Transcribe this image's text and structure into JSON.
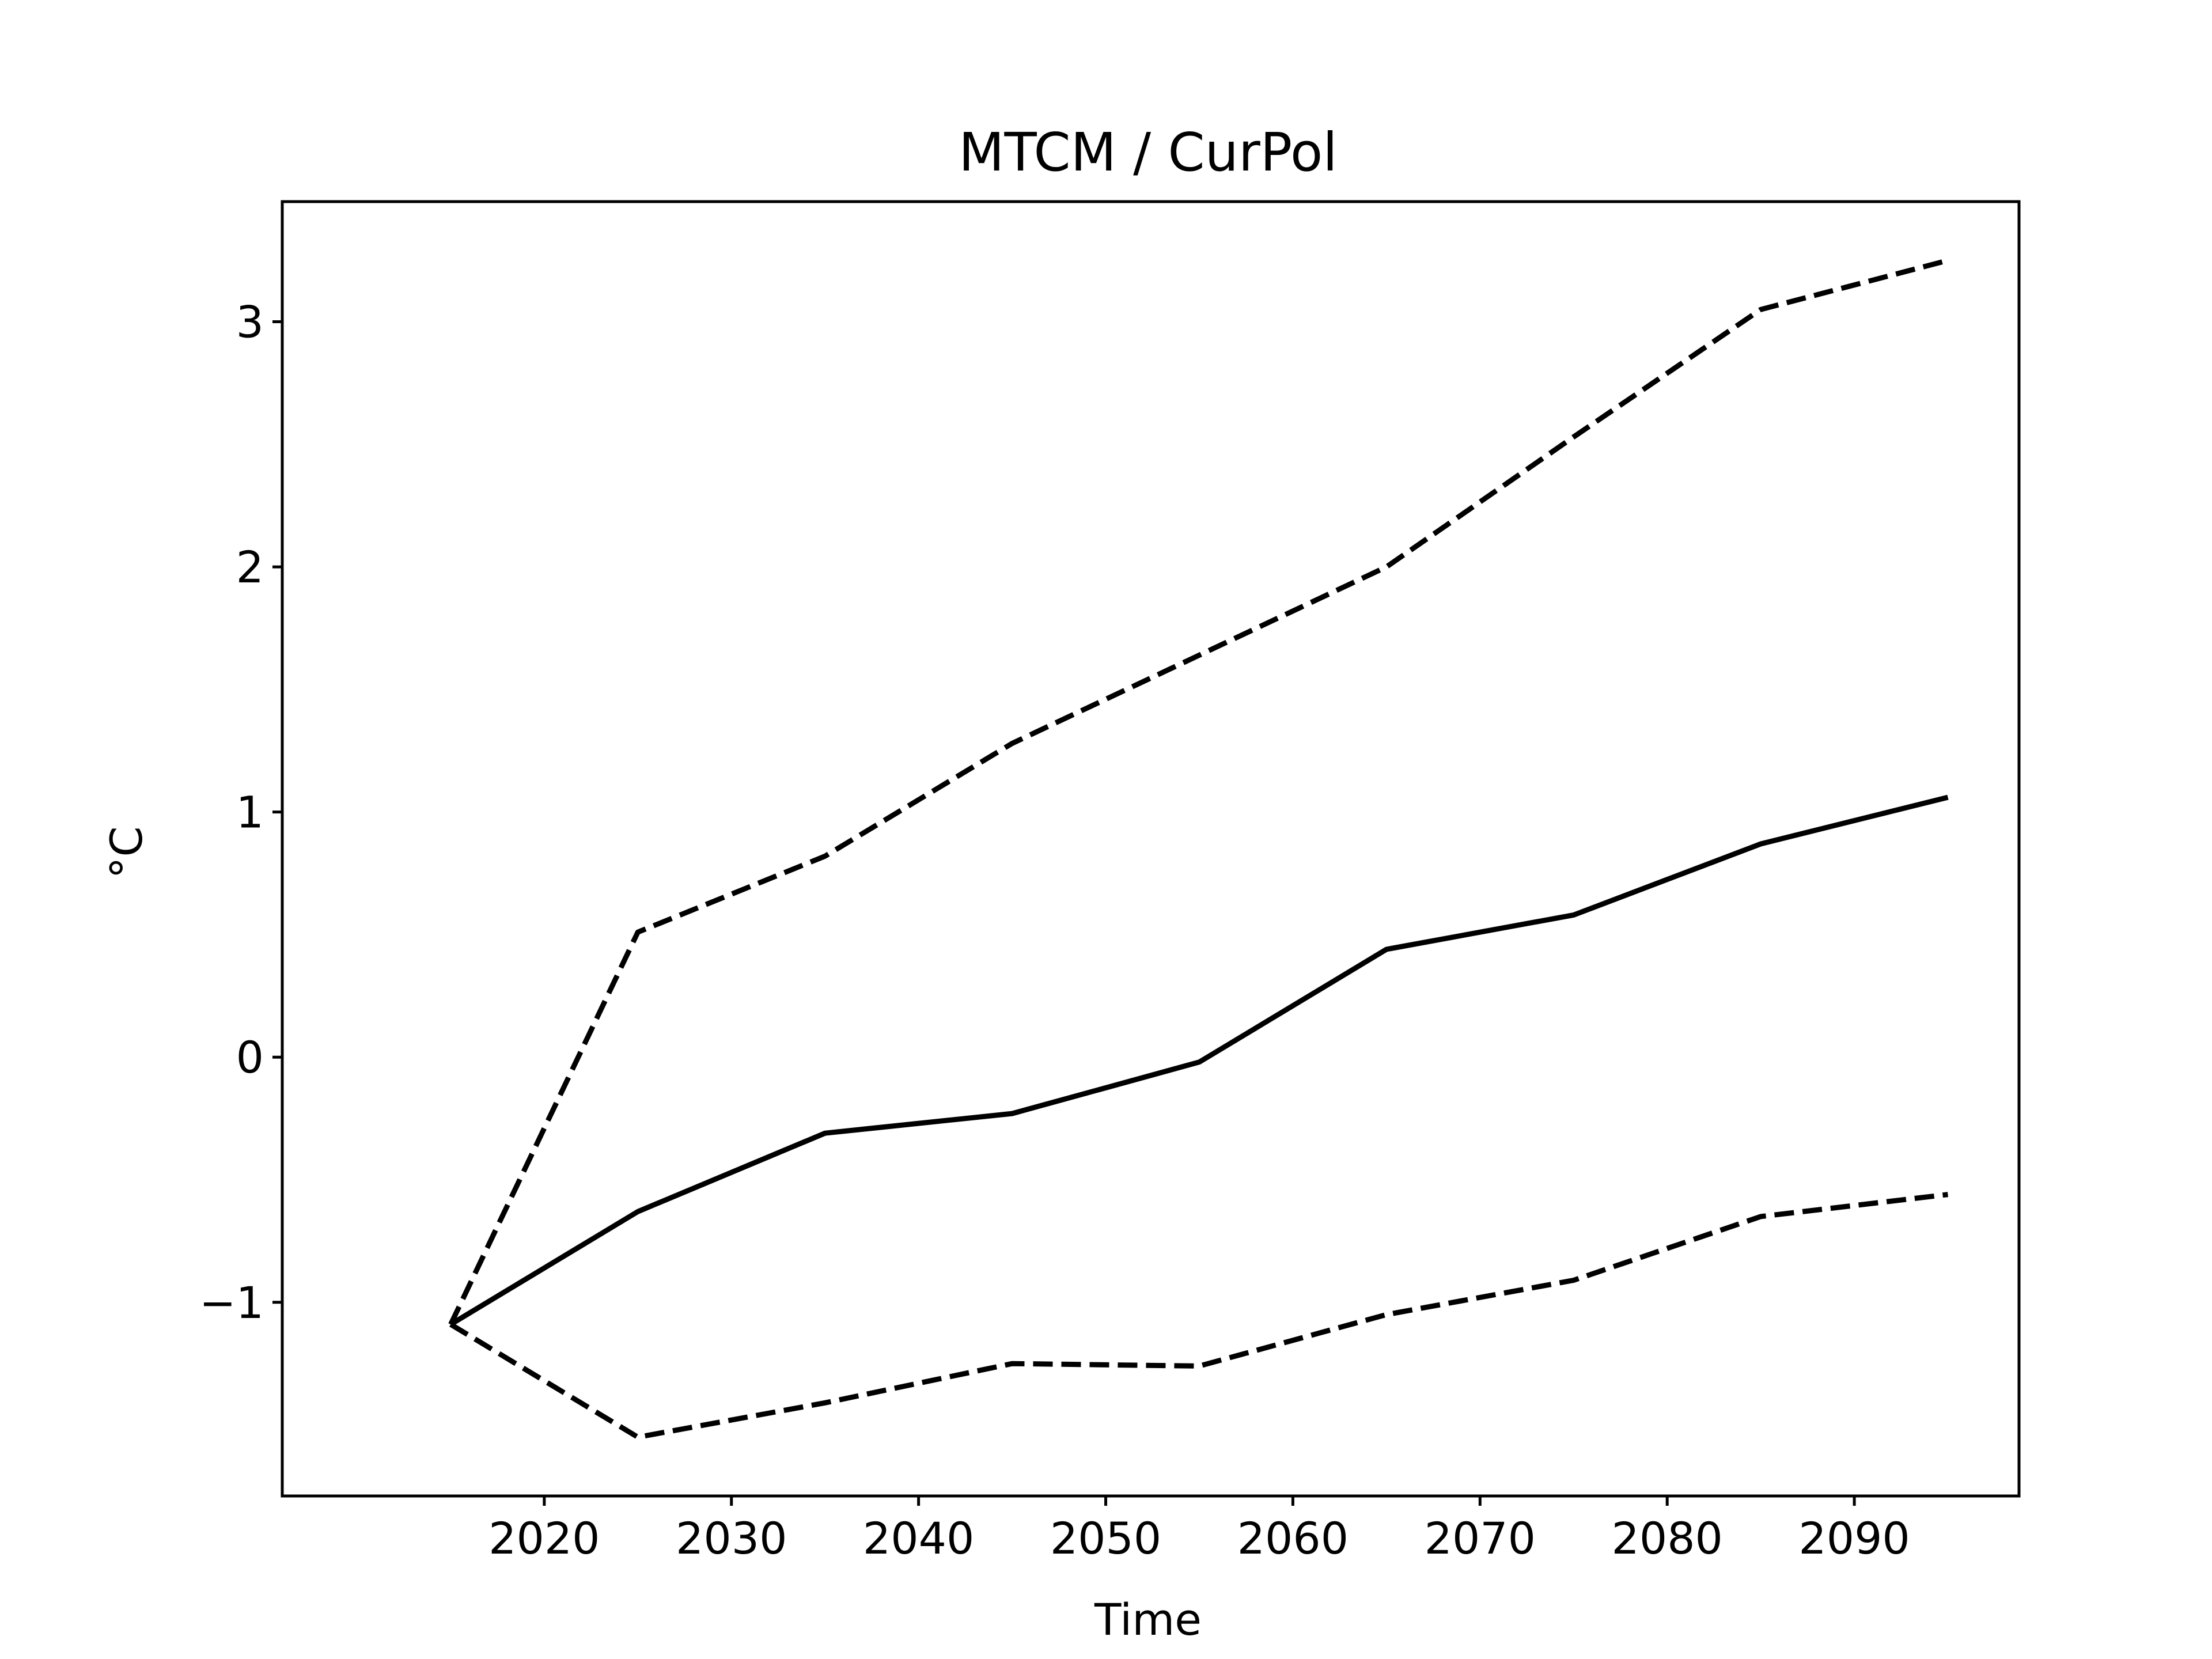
{
  "chart_data": {
    "type": "line",
    "title": "MTCM / CurPol",
    "xlabel": "Time",
    "ylabel": "°C",
    "x": [
      2015,
      2025,
      2035,
      2045,
      2055,
      2065,
      2075,
      2085,
      2095
    ],
    "xlim": [
      2006,
      2098.8
    ],
    "ylim": [
      -1.79,
      3.49
    ],
    "xticks": [
      2020,
      2030,
      2040,
      2050,
      2060,
      2070,
      2080,
      2090
    ],
    "yticks": [
      -1,
      0,
      1,
      2,
      3
    ],
    "ytick_labels": [
      "−1",
      "0",
      "1",
      "2",
      "3"
    ],
    "grid": false,
    "series": [
      {
        "style": "solid",
        "color": "#000000",
        "values": [
          -1.09,
          -0.63,
          -0.31,
          -0.23,
          -0.02,
          0.44,
          0.58,
          0.87,
          1.06
        ]
      },
      {
        "style": "dashed",
        "color": "#000000",
        "values": [
          -1.09,
          0.51,
          0.82,
          1.28,
          1.64,
          2.0,
          2.53,
          3.05,
          3.25
        ]
      },
      {
        "style": "dashed",
        "color": "#000000",
        "values": [
          -1.09,
          -1.55,
          -1.41,
          -1.25,
          -1.26,
          -1.05,
          -0.91,
          -0.65,
          -0.56
        ]
      }
    ]
  }
}
